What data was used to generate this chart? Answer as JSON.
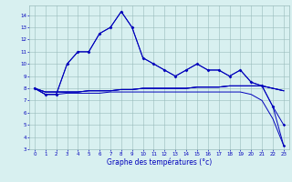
{
  "xlabel": "Graphe des températures (°c)",
  "hours": [
    0,
    1,
    2,
    3,
    4,
    5,
    6,
    7,
    8,
    9,
    10,
    11,
    12,
    13,
    14,
    15,
    16,
    17,
    18,
    19,
    20,
    21,
    22,
    23
  ],
  "line1": [
    8.0,
    7.5,
    7.5,
    10.0,
    11.0,
    11.0,
    12.5,
    13.0,
    14.3,
    13.0,
    10.5,
    10.0,
    9.5,
    9.0,
    9.5,
    10.0,
    9.5,
    9.5,
    9.0,
    9.5,
    8.5,
    8.2,
    6.5,
    5.0
  ],
  "line2": [
    8.0,
    7.5,
    7.5,
    10.0,
    11.0,
    11.0,
    12.5,
    13.0,
    14.3,
    13.0,
    10.5,
    10.0,
    9.5,
    9.0,
    9.5,
    10.0,
    9.5,
    9.5,
    9.0,
    9.5,
    8.5,
    8.2,
    6.5,
    3.3
  ],
  "line3": [
    8.0,
    7.7,
    7.7,
    7.7,
    7.7,
    7.8,
    7.8,
    7.8,
    7.9,
    7.9,
    8.0,
    8.0,
    8.0,
    8.0,
    8.0,
    8.1,
    8.1,
    8.1,
    8.2,
    8.2,
    8.2,
    8.2,
    8.0,
    7.8
  ],
  "line4": [
    8.0,
    7.7,
    7.7,
    7.7,
    7.7,
    7.8,
    7.8,
    7.8,
    7.9,
    7.9,
    8.0,
    8.0,
    8.0,
    8.0,
    8.0,
    8.1,
    8.1,
    8.1,
    8.2,
    8.2,
    8.2,
    8.2,
    8.0,
    7.8
  ],
  "line5": [
    8.0,
    7.7,
    7.7,
    7.7,
    7.7,
    7.8,
    7.8,
    7.8,
    7.9,
    7.9,
    8.0,
    8.0,
    8.0,
    8.0,
    8.0,
    8.1,
    8.1,
    8.1,
    8.2,
    8.2,
    8.2,
    8.2,
    8.0,
    7.8
  ],
  "line6": [
    8.0,
    7.5,
    7.5,
    7.6,
    7.6,
    7.6,
    7.6,
    7.7,
    7.7,
    7.7,
    7.7,
    7.7,
    7.7,
    7.7,
    7.7,
    7.7,
    7.7,
    7.7,
    7.7,
    7.7,
    7.5,
    7.0,
    5.5,
    3.3
  ],
  "line_color": "#0000bb",
  "bg_color": "#d8f0f0",
  "grid_color": "#99bbbb",
  "ylim": [
    3,
    14.8
  ],
  "yticks": [
    3,
    4,
    5,
    6,
    7,
    8,
    9,
    10,
    11,
    12,
    13,
    14
  ],
  "xlim": [
    -0.5,
    23.5
  ]
}
